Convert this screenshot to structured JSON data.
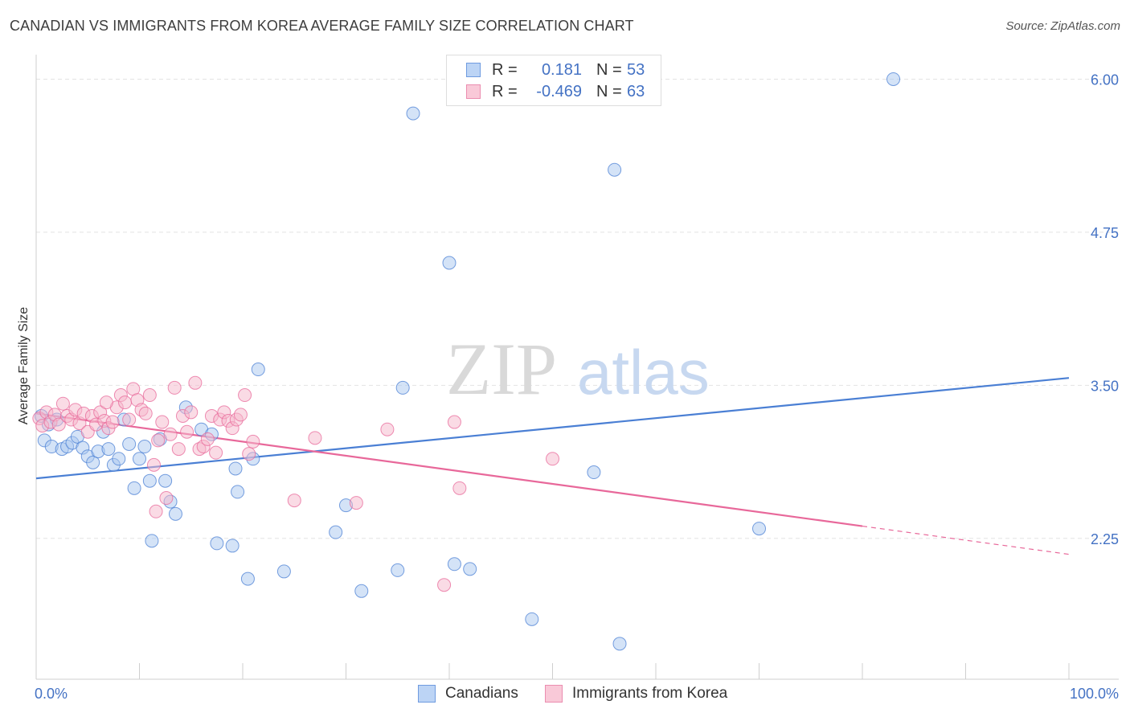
{
  "title": "CANADIAN VS IMMIGRANTS FROM KOREA AVERAGE FAMILY SIZE CORRELATION CHART",
  "source": "Source: ZipAtlas.com",
  "watermark": {
    "zip": "ZIP",
    "atlas": "atlas"
  },
  "legend": {
    "rows": [
      {
        "r_label": "R =",
        "r_value": "0.181",
        "n_label": "N =",
        "n_value": "53"
      },
      {
        "r_label": "R =",
        "r_value": "-0.469",
        "n_label": "N =",
        "n_value": "63"
      }
    ]
  },
  "colors": {
    "blue": "#4a7fd4",
    "blue_fill": "#aac8f0",
    "pink": "#e8689a",
    "pink_fill": "#f5b8cc",
    "tick": "#4472c4"
  },
  "chart_data": {
    "type": "scatter",
    "ylabel": "Average Family Size",
    "x_tick_labels": [
      "0.0%",
      "100.0%"
    ],
    "y_ticks": [
      2.25,
      3.5,
      4.75,
      6.0
    ],
    "y_tick_labels": [
      "2.25",
      "3.50",
      "4.75",
      "6.00"
    ],
    "xlim": [
      0,
      100
    ],
    "ylim": [
      1.1,
      6.2
    ],
    "grid": true,
    "legend_placement": "bottom",
    "series": [
      {
        "name": "Canadians",
        "color": "#4a7fd4",
        "trend": {
          "x": [
            0,
            100
          ],
          "y": [
            2.74,
            3.56
          ]
        },
        "points": [
          [
            0.5,
            3.25
          ],
          [
            0.8,
            3.05
          ],
          [
            1.2,
            3.18
          ],
          [
            1.5,
            3.0
          ],
          [
            2.0,
            3.22
          ],
          [
            2.5,
            2.98
          ],
          [
            3.0,
            3.0
          ],
          [
            3.5,
            3.03
          ],
          [
            4.0,
            3.08
          ],
          [
            4.5,
            2.99
          ],
          [
            5.0,
            2.92
          ],
          [
            5.5,
            2.87
          ],
          [
            6.0,
            2.96
          ],
          [
            6.5,
            3.12
          ],
          [
            7.0,
            2.98
          ],
          [
            7.5,
            2.85
          ],
          [
            8.0,
            2.9
          ],
          [
            8.5,
            3.22
          ],
          [
            9.0,
            3.02
          ],
          [
            9.5,
            2.66
          ],
          [
            10.0,
            2.9
          ],
          [
            10.5,
            3.0
          ],
          [
            11.0,
            2.72
          ],
          [
            11.2,
            2.23
          ],
          [
            12.0,
            3.06
          ],
          [
            12.5,
            2.72
          ],
          [
            13.0,
            2.55
          ],
          [
            13.5,
            2.45
          ],
          [
            14.5,
            3.32
          ],
          [
            16.0,
            3.14
          ],
          [
            17.0,
            3.1
          ],
          [
            17.5,
            2.21
          ],
          [
            19.0,
            2.19
          ],
          [
            19.3,
            2.82
          ],
          [
            19.5,
            2.63
          ],
          [
            20.5,
            1.92
          ],
          [
            21.0,
            2.9
          ],
          [
            21.5,
            3.63
          ],
          [
            24.0,
            1.98
          ],
          [
            29.0,
            2.3
          ],
          [
            30.0,
            2.52
          ],
          [
            31.5,
            1.82
          ],
          [
            35.0,
            1.99
          ],
          [
            35.5,
            3.48
          ],
          [
            36.5,
            5.72
          ],
          [
            40.0,
            4.5
          ],
          [
            40.5,
            2.04
          ],
          [
            42.0,
            2.0
          ],
          [
            48.0,
            1.59
          ],
          [
            54.0,
            2.79
          ],
          [
            56.0,
            5.26
          ],
          [
            56.5,
            1.39
          ],
          [
            70.0,
            2.33
          ],
          [
            83.0,
            6.0
          ]
        ]
      },
      {
        "name": "Immigrants from Korea",
        "color": "#e8689a",
        "trend": {
          "x": [
            0,
            80
          ],
          "y": [
            3.27,
            2.35
          ]
        },
        "trend_dashed": {
          "x": [
            80,
            100
          ],
          "y": [
            2.35,
            2.12
          ]
        },
        "points": [
          [
            0.3,
            3.23
          ],
          [
            0.6,
            3.17
          ],
          [
            1.0,
            3.28
          ],
          [
            1.4,
            3.2
          ],
          [
            1.8,
            3.26
          ],
          [
            2.2,
            3.18
          ],
          [
            2.6,
            3.35
          ],
          [
            3.0,
            3.25
          ],
          [
            3.4,
            3.22
          ],
          [
            3.8,
            3.3
          ],
          [
            4.2,
            3.19
          ],
          [
            4.6,
            3.27
          ],
          [
            5.0,
            3.12
          ],
          [
            5.4,
            3.25
          ],
          [
            5.8,
            3.18
          ],
          [
            6.2,
            3.28
          ],
          [
            6.6,
            3.21
          ],
          [
            7.0,
            3.15
          ],
          [
            7.4,
            3.2
          ],
          [
            7.8,
            3.32
          ],
          [
            8.2,
            3.42
          ],
          [
            8.6,
            3.36
          ],
          [
            9.0,
            3.22
          ],
          [
            9.4,
            3.47
          ],
          [
            9.8,
            3.38
          ],
          [
            10.2,
            3.3
          ],
          [
            10.6,
            3.27
          ],
          [
            11.0,
            3.42
          ],
          [
            11.4,
            2.85
          ],
          [
            11.8,
            3.05
          ],
          [
            12.2,
            3.2
          ],
          [
            12.6,
            2.58
          ],
          [
            13.0,
            3.1
          ],
          [
            13.4,
            3.48
          ],
          [
            13.8,
            2.98
          ],
          [
            14.2,
            3.25
          ],
          [
            14.6,
            3.12
          ],
          [
            15.0,
            3.28
          ],
          [
            15.4,
            3.52
          ],
          [
            15.8,
            2.98
          ],
          [
            16.2,
            3.0
          ],
          [
            16.6,
            3.06
          ],
          [
            17.0,
            3.25
          ],
          [
            17.4,
            2.95
          ],
          [
            17.8,
            3.22
          ],
          [
            18.2,
            3.28
          ],
          [
            18.6,
            3.21
          ],
          [
            19.0,
            3.15
          ],
          [
            19.4,
            3.22
          ],
          [
            19.8,
            3.26
          ],
          [
            20.2,
            3.42
          ],
          [
            20.6,
            2.94
          ],
          [
            21.0,
            3.04
          ],
          [
            25.0,
            2.56
          ],
          [
            27.0,
            3.07
          ],
          [
            31.0,
            2.54
          ],
          [
            34.0,
            3.14
          ],
          [
            39.5,
            1.87
          ],
          [
            40.5,
            3.2
          ],
          [
            41.0,
            2.66
          ],
          [
            50.0,
            2.9
          ],
          [
            11.6,
            2.47
          ],
          [
            6.8,
            3.36
          ]
        ]
      }
    ]
  }
}
